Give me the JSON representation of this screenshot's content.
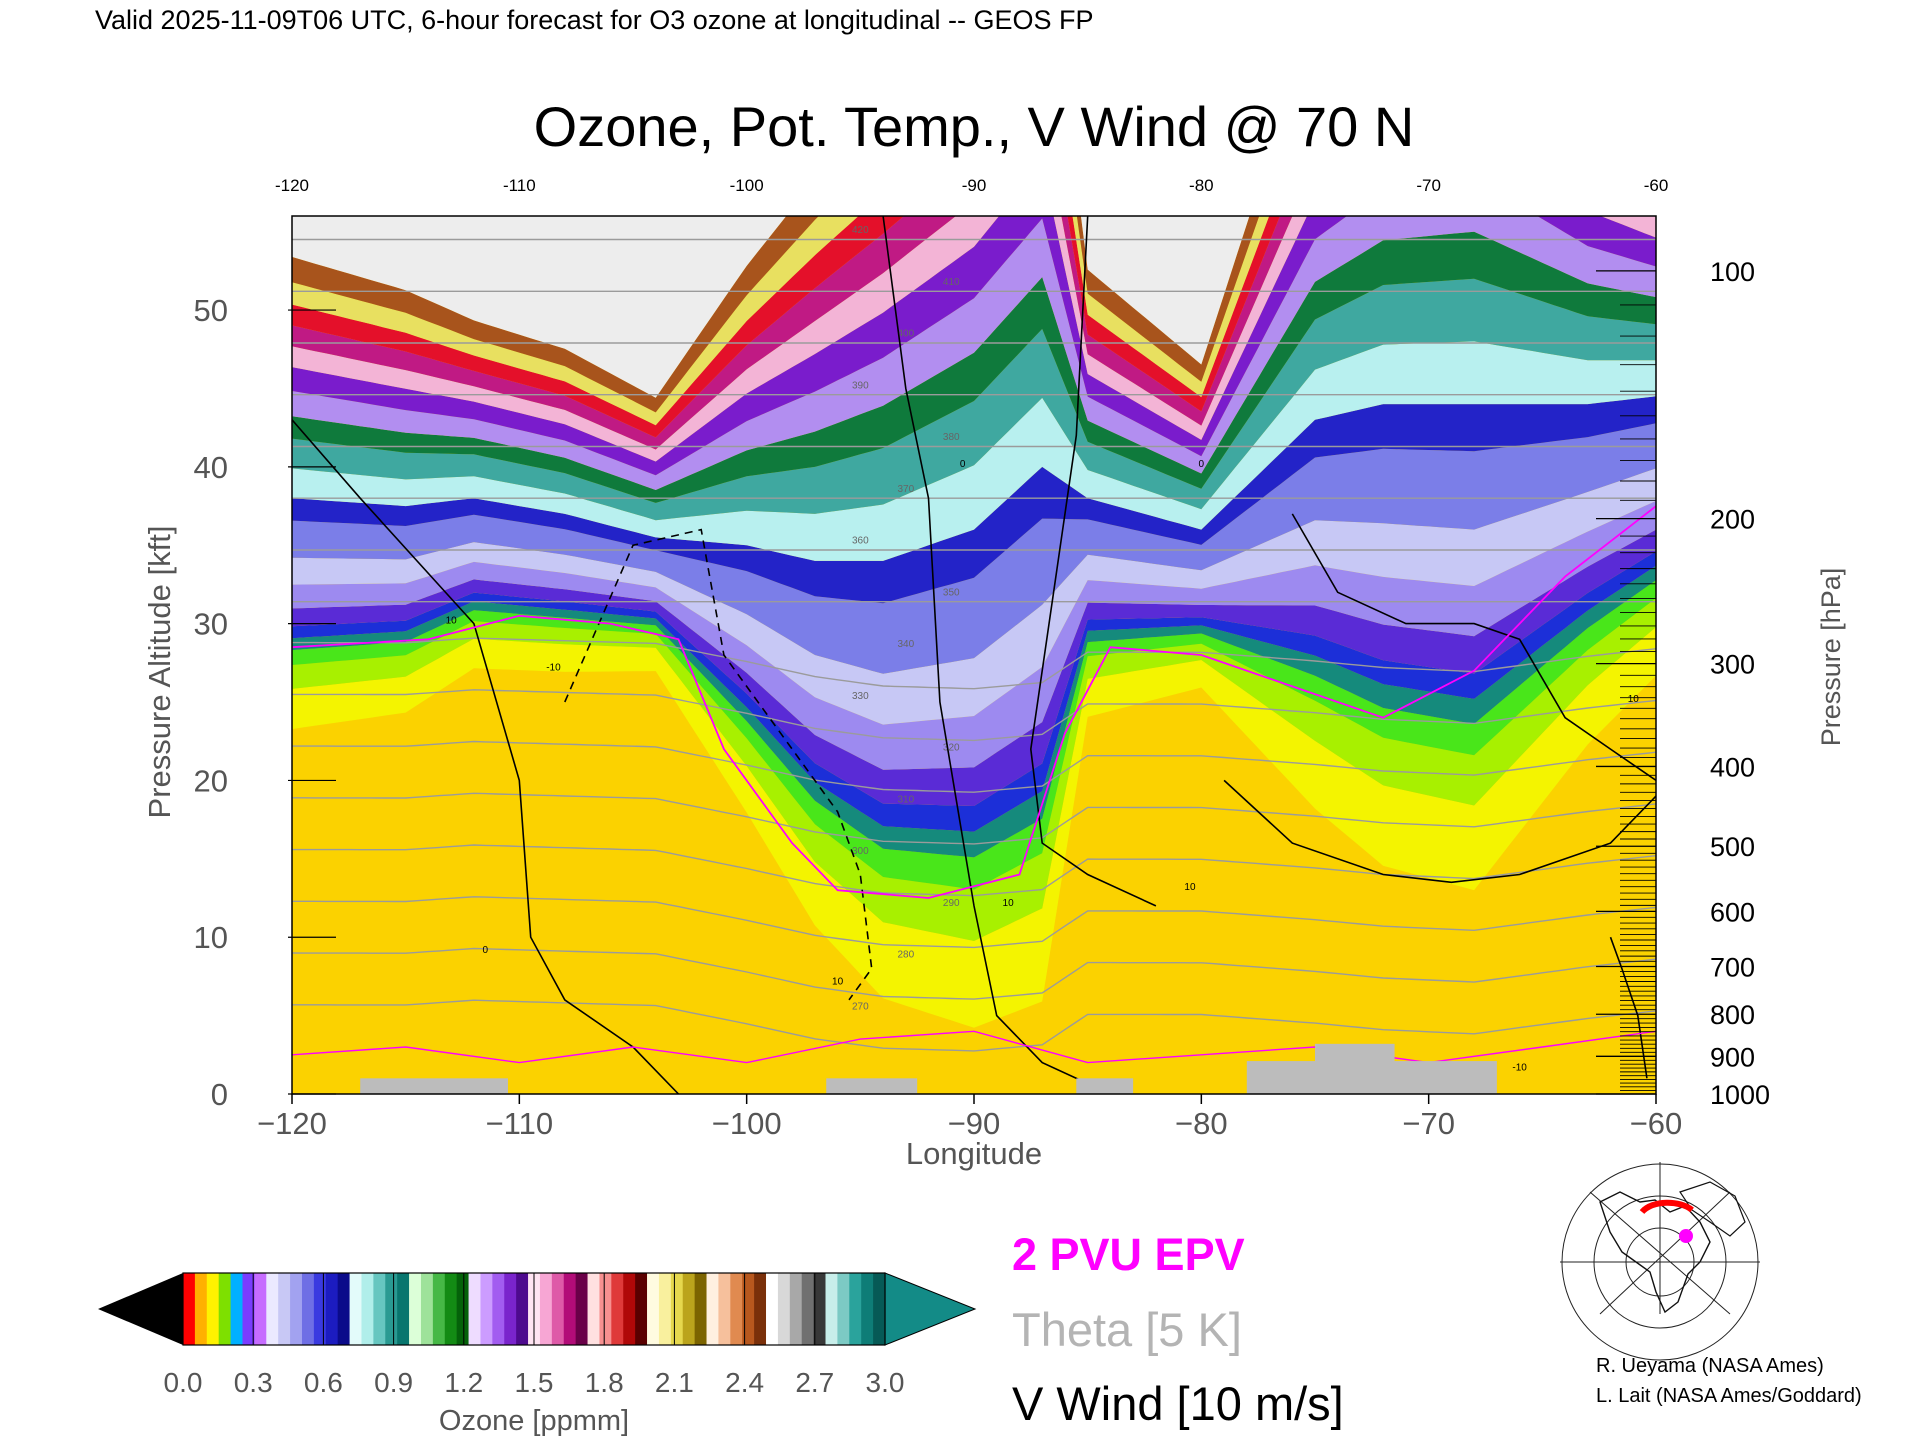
{
  "header": "Valid 2025-11-09T06 UTC, 6-hour forecast for O3 ozone at longitudinal -- GEOS FP",
  "chart_data": {
    "type": "heatmap",
    "title": "Ozone, Pot. Temp., V Wind @ 70 N",
    "xlabel": "Longitude",
    "ylabel_left": "Pressure Altitude [kft]",
    "ylabel_right": "Pressure [hPa]",
    "xlim": [
      -120,
      -60
    ],
    "ylim": [
      0,
      56
    ],
    "x_ticks": [
      "-120",
      "-110",
      "-100",
      "-90",
      "-80",
      "-70",
      "-60"
    ],
    "x_ticks_bottom": [
      "−120",
      "−110",
      "−100",
      "−90",
      "−80",
      "−70",
      "−60"
    ],
    "y_ticks_left": [
      "0",
      "10",
      "20",
      "30",
      "40",
      "50"
    ],
    "y_ticks_right": [
      "100",
      "200",
      "300",
      "400",
      "500",
      "600",
      "700",
      "800",
      "900",
      "1000"
    ],
    "theta_labels": [
      "270",
      "280",
      "290",
      "300",
      "310",
      "320",
      "330",
      "340",
      "350",
      "360",
      "370",
      "380",
      "390",
      "400",
      "410",
      "420"
    ],
    "wind_labels": [
      "10",
      "0",
      "-10",
      "10",
      "0",
      "10",
      "10",
      "0",
      "-10",
      "10"
    ],
    "colorbar": {
      "ticks": [
        "0.0",
        "0.3",
        "0.6",
        "0.9",
        "1.2",
        "1.5",
        "1.8",
        "2.1",
        "2.4",
        "2.7",
        "3.0"
      ],
      "label": "Ozone [ppmm]",
      "range": [
        0.0,
        3.0
      ]
    },
    "ozone_profile": {
      "x": [
        -120,
        -115,
        -112,
        -108,
        -104,
        -100,
        -97,
        -94,
        -90,
        -87,
        -85,
        -80,
        -75,
        -72,
        -68,
        -63,
        -60
      ],
      "top_300_kft": [
        28.5,
        29,
        31,
        30.5,
        30,
        24,
        19,
        16,
        15.5,
        18,
        29,
        29.5,
        27,
        25,
        24,
        30,
        33
      ],
      "bottom_350_kft": [
        38,
        37.5,
        38,
        37,
        35.5,
        35,
        34,
        34,
        36,
        40,
        38,
        36,
        43,
        44,
        44,
        44,
        44.5
      ]
    },
    "legend": [
      "2 PVU EPV",
      "Theta [5 K]",
      "V Wind [10 m/s]"
    ],
    "colors": {
      "epv": "#ff00ff",
      "theta": "#9b9b9b",
      "wind": "#000000",
      "terrain": "#bcbcbc",
      "background": "#ffffff"
    }
  },
  "credits": [
    "R. Ueyama (NASA Ames)",
    "L. Lait (NASA Ames/Goddard)"
  ],
  "inset_map": {
    "icon": "polar-map-icon",
    "marker_color": "#ff00ff",
    "track_color": "#ff0000"
  }
}
